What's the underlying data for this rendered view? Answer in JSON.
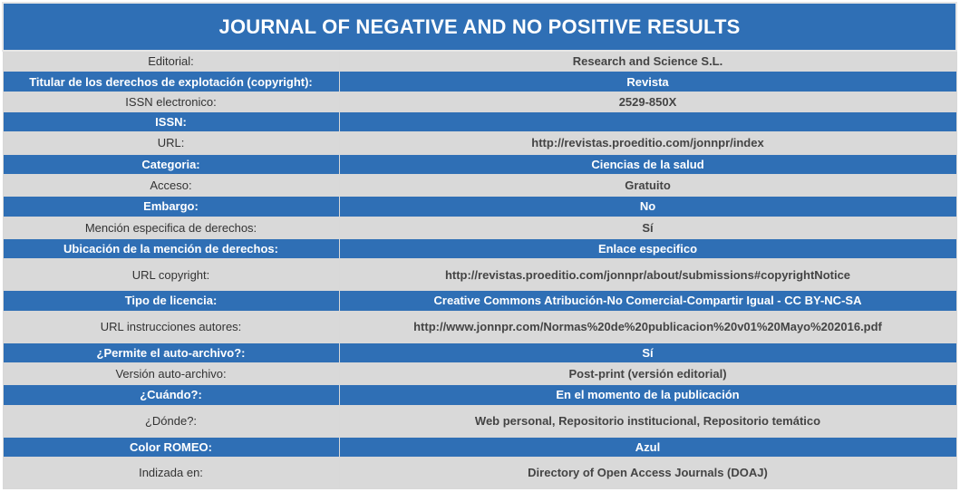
{
  "title": "JOURNAL OF NEGATIVE AND NO POSITIVE RESULTS",
  "rows": [
    {
      "label": "Editorial:",
      "value": "Research and Science S.L."
    },
    {
      "label": "Titular de los derechos de explotación (copyright):",
      "value": "Revista"
    },
    {
      "label": "ISSN electronico:",
      "value": "2529-850X"
    },
    {
      "label": "ISSN:",
      "value": ""
    },
    {
      "label": "URL:",
      "value": "http://revistas.proeditio.com/jonnpr/index"
    },
    {
      "label": "Categoria:",
      "value": "Ciencias de la salud"
    },
    {
      "label": "Acceso:",
      "value": "Gratuito"
    },
    {
      "label": "Embargo:",
      "value": "No"
    },
    {
      "label": "Mención especifica de derechos:",
      "value": "Sí"
    },
    {
      "label": "Ubicación de la mención de derechos:",
      "value": "Enlace especifico"
    },
    {
      "label": "URL copyright:",
      "value": "http://revistas.proeditio.com/jonnpr/about/submissions#copyrightNotice"
    },
    {
      "label": "Tipo de licencia:",
      "value": "Creative Commons Atribución-No Comercial-Compartir Igual - CC BY-NC-SA"
    },
    {
      "label": "URL instrucciones autores:",
      "value": "http://www.jonnpr.com/Normas%20de%20publicacion%20v01%20Mayo%202016.pdf"
    },
    {
      "label": "¿Permite el auto-archivo?:",
      "value": "Sí"
    },
    {
      "label": "Versión auto-archivo:",
      "value": "Post-print (versión editorial)"
    },
    {
      "label": "¿Cuándo?:",
      "value": "En el momento de la publicación"
    },
    {
      "label": "¿Dónde?:",
      "value": "Web personal, Repositorio institucional, Repositorio temático"
    },
    {
      "label": "Color ROMEO:",
      "value": "Azul"
    },
    {
      "label": "Indizada en:",
      "value": "Directory of Open Access Journals (DOAJ)"
    }
  ]
}
